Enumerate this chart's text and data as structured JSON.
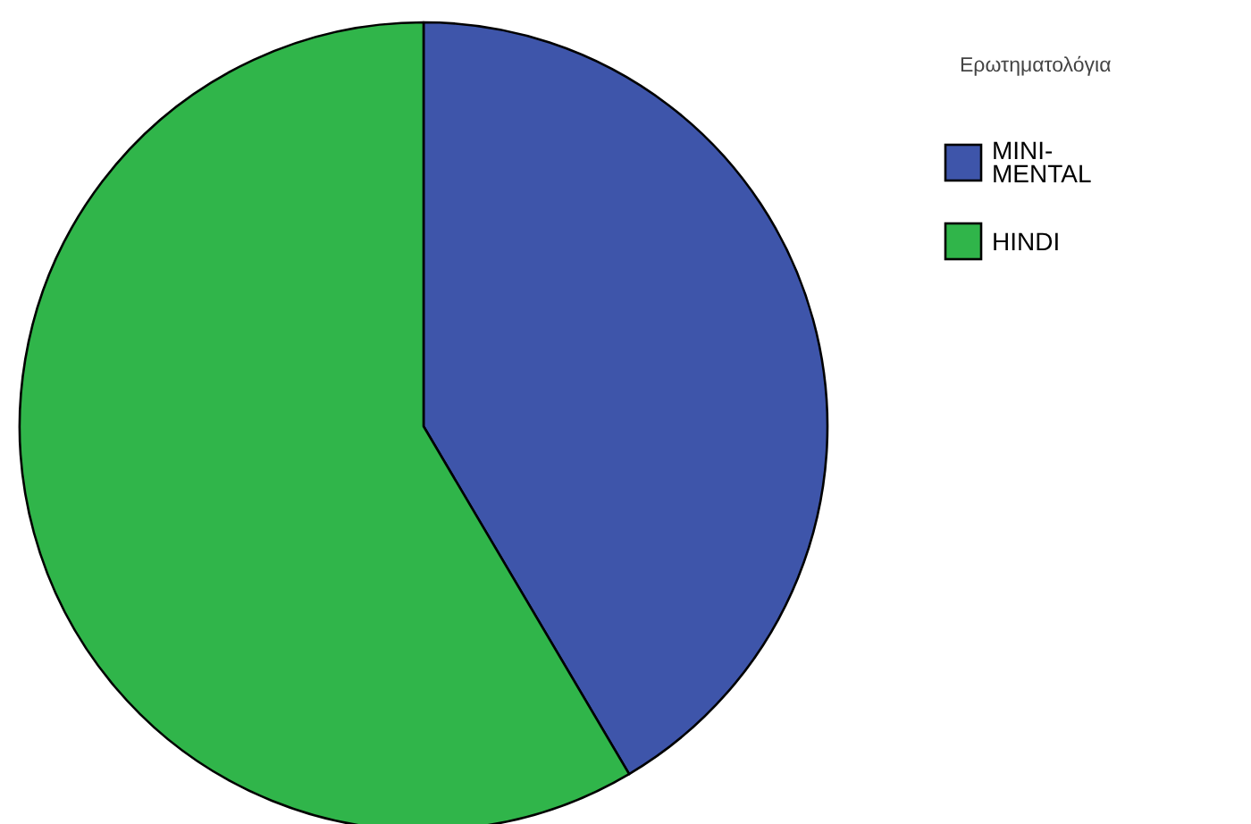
{
  "chart_data": {
    "type": "pie",
    "legend_title": "Ερωτηματολόγια",
    "categories": [
      "MINI-MENTAL",
      "HINDI"
    ],
    "values": [
      41.5,
      58.5
    ],
    "colors": [
      "#3e55aa",
      "#30b54a"
    ],
    "legend": "top right"
  }
}
